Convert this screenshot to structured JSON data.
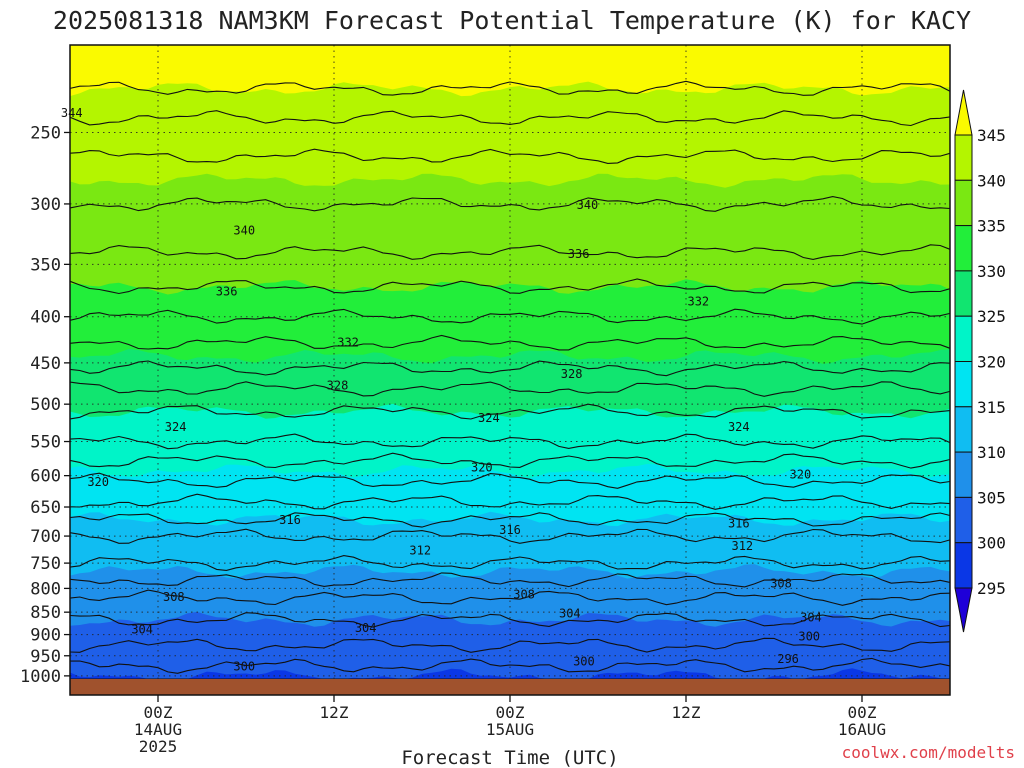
{
  "chart_data": {
    "type": "heatmap",
    "title": "2025081318 NAM3KM Forecast Potential Temperature (K) for KACY",
    "xlabel": "Forecast Time (UTC)",
    "ylabel": "",
    "credit": "coolwx.com/modelts",
    "x_range_hours": [
      -5,
      45
    ],
    "y_range_hpa": [
      200,
      1050
    ],
    "y_scale": "log",
    "grid": true,
    "y_ticks": [
      {
        "value": 250,
        "label": "250"
      },
      {
        "value": 300,
        "label": "300"
      },
      {
        "value": 350,
        "label": "350"
      },
      {
        "value": 400,
        "label": "400"
      },
      {
        "value": 450,
        "label": "450"
      },
      {
        "value": 500,
        "label": "500"
      },
      {
        "value": 550,
        "label": "550"
      },
      {
        "value": 600,
        "label": "600"
      },
      {
        "value": 650,
        "label": "650"
      },
      {
        "value": 700,
        "label": "700"
      },
      {
        "value": 750,
        "label": "750"
      },
      {
        "value": 800,
        "label": "800"
      },
      {
        "value": 850,
        "label": "850"
      },
      {
        "value": 900,
        "label": "900"
      },
      {
        "value": 950,
        "label": "950"
      },
      {
        "value": 1000,
        "label": "1000"
      }
    ],
    "x_ticks": [
      {
        "value": 0,
        "lines": [
          "00Z",
          "14AUG",
          "2025"
        ]
      },
      {
        "value": 10,
        "lines": [
          "12Z"
        ]
      },
      {
        "value": 20,
        "lines": [
          "00Z",
          "15AUG"
        ]
      },
      {
        "value": 30,
        "lines": [
          "12Z"
        ]
      },
      {
        "value": 40,
        "lines": [
          "00Z",
          "16AUG"
        ]
      }
    ],
    "colorbar": {
      "levels": [
        295,
        300,
        305,
        310,
        315,
        320,
        325,
        330,
        335,
        340,
        345
      ],
      "labels": [
        "295",
        "300",
        "305",
        "310",
        "315",
        "320",
        "325",
        "330",
        "335",
        "340",
        "345"
      ],
      "colors": [
        "#1e00d8",
        "#0a37e6",
        "#1f5fe8",
        "#1f90ea",
        "#10bdf2",
        "#00e4f2",
        "#00f4c8",
        "#11e570",
        "#22ee3a",
        "#7ae812",
        "#b4f500",
        "#fafa00"
      ]
    },
    "profile": [
      {
        "p": 200,
        "theta": 348
      },
      {
        "p": 250,
        "theta": 342
      },
      {
        "p": 300,
        "theta": 339
      },
      {
        "p": 350,
        "theta": 336.5
      },
      {
        "p": 400,
        "theta": 333
      },
      {
        "p": 450,
        "theta": 329.5
      },
      {
        "p": 500,
        "theta": 325.5
      },
      {
        "p": 550,
        "theta": 323
      },
      {
        "p": 600,
        "theta": 319.5
      },
      {
        "p": 650,
        "theta": 316.5
      },
      {
        "p": 700,
        "theta": 313
      },
      {
        "p": 750,
        "theta": 311
      },
      {
        "p": 800,
        "theta": 308
      },
      {
        "p": 850,
        "theta": 305.5
      },
      {
        "p": 900,
        "theta": 304
      },
      {
        "p": 950,
        "theta": 302
      },
      {
        "p": 1000,
        "theta": 300
      }
    ],
    "contour_labels": [
      {
        "text": "344",
        "x": -4.9,
        "p": 238
      },
      {
        "text": "340",
        "x": 4.9,
        "p": 321
      },
      {
        "text": "340",
        "x": 24.4,
        "p": 301
      },
      {
        "text": "336",
        "x": 3.9,
        "p": 375
      },
      {
        "text": "336",
        "x": 23.9,
        "p": 341
      },
      {
        "text": "332",
        "x": 10.8,
        "p": 427
      },
      {
        "text": "332",
        "x": 30.7,
        "p": 385
      },
      {
        "text": "328",
        "x": 10.2,
        "p": 477
      },
      {
        "text": "328",
        "x": 23.5,
        "p": 463
      },
      {
        "text": "324",
        "x": 1.0,
        "p": 530
      },
      {
        "text": "324",
        "x": 18.8,
        "p": 518
      },
      {
        "text": "324",
        "x": 33.0,
        "p": 530
      },
      {
        "text": "320",
        "x": -3.4,
        "p": 610
      },
      {
        "text": "320",
        "x": 18.4,
        "p": 588
      },
      {
        "text": "320",
        "x": 36.5,
        "p": 598
      },
      {
        "text": "316",
        "x": 7.5,
        "p": 672
      },
      {
        "text": "316",
        "x": 20.0,
        "p": 689
      },
      {
        "text": "316",
        "x": 33.0,
        "p": 678
      },
      {
        "text": "312",
        "x": 14.9,
        "p": 726
      },
      {
        "text": "312",
        "x": 33.2,
        "p": 718
      },
      {
        "text": "308",
        "x": 0.9,
        "p": 818
      },
      {
        "text": "308",
        "x": 20.8,
        "p": 813
      },
      {
        "text": "308",
        "x": 35.4,
        "p": 790
      },
      {
        "text": "304",
        "x": -0.9,
        "p": 888
      },
      {
        "text": "304",
        "x": 11.8,
        "p": 885
      },
      {
        "text": "304",
        "x": 23.4,
        "p": 853
      },
      {
        "text": "304",
        "x": 37.1,
        "p": 862
      },
      {
        "text": "300",
        "x": 4.9,
        "p": 976
      },
      {
        "text": "300",
        "x": 24.2,
        "p": 964
      },
      {
        "text": "300",
        "x": 37.0,
        "p": 904
      },
      {
        "text": "296",
        "x": 35.8,
        "p": 958
      }
    ]
  }
}
